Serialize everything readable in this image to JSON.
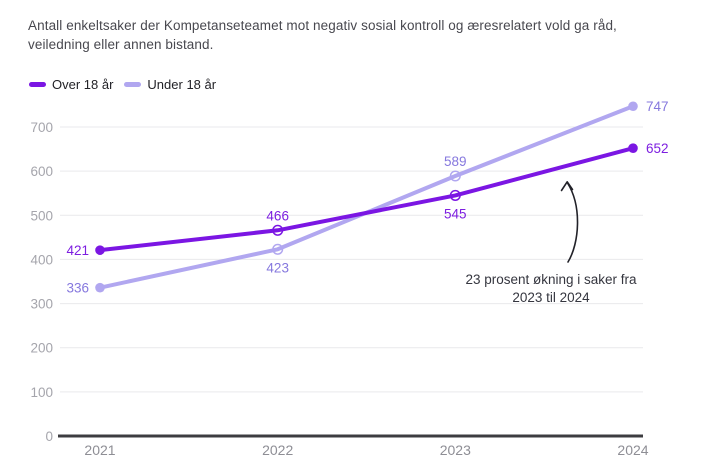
{
  "title": "Antall enkeltsaker der Kompetanseteamet mot negativ sosial kontroll og æresrelatert vold ga råd, veiledning eller annen bistand.",
  "legend": {
    "items": [
      {
        "label": "Over 18 år",
        "color": "#7b16e3"
      },
      {
        "label": "Under 18 år",
        "color": "#b1a7f0"
      }
    ]
  },
  "annotation": {
    "text": "23 prosent økning i saker fra 2023 til 2024"
  },
  "colors": {
    "over_18_line": "#7b16e3",
    "over_18_label": "#7d1ee0",
    "under_18_line": "#b1a7f0",
    "under_18_label": "#8678de",
    "grid": "#e9e9ec",
    "axis": "#3c3c40",
    "y_tick_text": "#a5a5ac",
    "x_tick_text": "#8e8e95",
    "arrow": "#222229"
  },
  "chart_data": {
    "type": "line",
    "title": "Antall enkeltsaker der Kompetanseteamet mot negativ sosial kontroll og æresrelatert vold ga råd, veiledning eller annen bistand.",
    "categories": [
      "2021",
      "2022",
      "2023",
      "2024"
    ],
    "series": [
      {
        "name": "Over 18 år",
        "values": [
          421,
          466,
          545,
          652
        ],
        "color": "#7b16e3",
        "label_color": "#7d1ee0",
        "label_positions": [
          "left",
          "top",
          "bottom",
          "right"
        ]
      },
      {
        "name": "Under 18 år",
        "values": [
          336,
          423,
          589,
          747
        ],
        "color": "#b1a7f0",
        "label_color": "#8678de",
        "label_positions": [
          "left",
          "bottom",
          "top",
          "right"
        ]
      }
    ],
    "xlabel": "",
    "ylabel": "",
    "ylim": [
      0,
      700
    ],
    "yticks": [
      0,
      100,
      200,
      300,
      400,
      500,
      600,
      700
    ],
    "grid": true,
    "legend_position": "top-left",
    "annotation": "23 prosent økning i saker fra 2023 til 2024"
  }
}
